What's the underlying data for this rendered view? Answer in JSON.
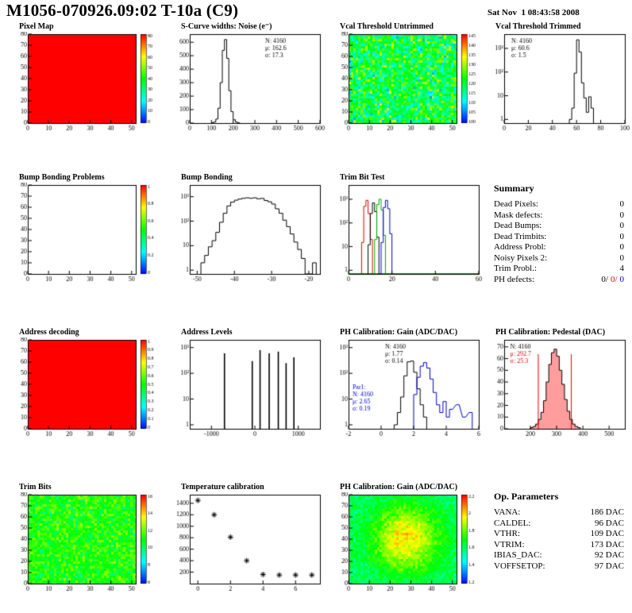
{
  "header": {
    "title": "M1056-070926.09:02 T-10a (C9)",
    "date": "Sat Nov  1 08:43:58 2008"
  },
  "chart_data": [
    {
      "title": "Pixel Map",
      "type": "heatmap",
      "variant": "solid",
      "seed": 3,
      "xlim": [
        0,
        52
      ],
      "ylim": [
        0,
        80
      ],
      "xticks": [
        0,
        10,
        20,
        30,
        40,
        50
      ],
      "yticks": [
        0,
        10,
        20,
        30,
        40,
        50,
        60,
        70,
        80
      ],
      "colorbar": {
        "zticks": [
          "0",
          "10",
          "20",
          "30",
          "40",
          "50",
          "60",
          "70",
          "80"
        ]
      }
    },
    {
      "title": "S-Curve widths: Noise (e⁻)",
      "type": "hist",
      "xlim": [
        0,
        600
      ],
      "xticks": [
        0,
        100,
        200,
        300,
        400,
        500,
        600
      ],
      "ylim": [
        0,
        660
      ],
      "yticks": [
        0,
        100,
        200,
        300,
        400,
        500,
        600
      ],
      "bin_width": 10,
      "bins": [
        [
          100,
          2
        ],
        [
          110,
          8
        ],
        [
          120,
          30
        ],
        [
          130,
          110
        ],
        [
          140,
          300
        ],
        [
          150,
          540
        ],
        [
          160,
          620
        ],
        [
          170,
          480
        ],
        [
          180,
          240
        ],
        [
          190,
          85
        ],
        [
          200,
          25
        ],
        [
          210,
          8
        ],
        [
          220,
          2
        ]
      ],
      "stats": [
        {
          "x": 0.58,
          "y": 0.04,
          "lines": [
            {
              "t": "N: 4160",
              "c": "#000000"
            },
            {
              "t": "μ: 162.6",
              "c": "#000000"
            },
            {
              "t": "σ: 17.3",
              "c": "#000000"
            }
          ]
        }
      ]
    },
    {
      "title": "Vcal Threshold Untrimmed",
      "type": "heatmap",
      "variant": "noise",
      "seed": 17,
      "base": 0.45,
      "amp": 0.25,
      "xlim": [
        0,
        52
      ],
      "ylim": [
        0,
        80
      ],
      "xticks": [
        0,
        10,
        20,
        30,
        40,
        50
      ],
      "yticks": [
        0,
        10,
        20,
        30,
        40,
        50,
        60,
        70,
        80
      ],
      "colorbar": {
        "zticks": [
          "100",
          "105",
          "110",
          "115",
          "120",
          "125",
          "130",
          "135",
          "140",
          "145"
        ]
      }
    },
    {
      "title": "Vcal Threshold Trimmed",
      "type": "histlog",
      "xlim": [
        0,
        100
      ],
      "xticks": [
        0,
        20,
        40,
        60,
        80,
        100
      ],
      "ylog": {
        "min": 0.7,
        "max": 4000,
        "ticks": [
          1,
          10,
          100,
          1000
        ]
      },
      "bin_width": 2,
      "bins": [
        [
          54,
          1
        ],
        [
          56,
          3
        ],
        [
          58,
          90
        ],
        [
          60,
          2300
        ],
        [
          62,
          700
        ],
        [
          64,
          35
        ],
        [
          66,
          8
        ],
        [
          68,
          2
        ],
        [
          70,
          9
        ],
        [
          72,
          3
        ]
      ],
      "stats": [
        {
          "x": 0.06,
          "y": 0.04,
          "lines": [
            {
              "t": "N: 4160",
              "c": "#000000"
            },
            {
              "t": "μ: 60.6",
              "c": "#000000"
            },
            {
              "t": "σ: 1.5",
              "c": "#000000"
            }
          ]
        }
      ]
    },
    {
      "title": "Bump Bonding Problems",
      "type": "heatmap",
      "variant": "empty",
      "xlim": [
        0,
        52
      ],
      "ylim": [
        0,
        80
      ],
      "xticks": [
        0,
        10,
        20,
        30,
        40,
        50
      ],
      "yticks": [
        0,
        10,
        20,
        30,
        40,
        50,
        60,
        70,
        80
      ],
      "colorbar": {
        "zticks": [
          "0",
          "0.2",
          "0.4",
          "0.6",
          "0.8",
          "1"
        ]
      }
    },
    {
      "title": "Bump Bonding",
      "type": "histlog",
      "xlim": [
        -52,
        -17
      ],
      "xticks": [
        -50,
        -40,
        -30,
        -20
      ],
      "ylog": {
        "min": 0.7,
        "max": 3000,
        "ticks": [
          1,
          10,
          100,
          1000
        ]
      },
      "bin_width": 1,
      "bins": [
        [
          -49,
          2
        ],
        [
          -48,
          4
        ],
        [
          -47,
          9
        ],
        [
          -46,
          16
        ],
        [
          -45,
          35
        ],
        [
          -44,
          90
        ],
        [
          -43,
          210
        ],
        [
          -42,
          420
        ],
        [
          -41,
          600
        ],
        [
          -40,
          720
        ],
        [
          -39,
          800
        ],
        [
          -38,
          860
        ],
        [
          -37,
          900
        ],
        [
          -36,
          860
        ],
        [
          -35,
          900
        ],
        [
          -34,
          820
        ],
        [
          -33,
          850
        ],
        [
          -32,
          700
        ],
        [
          -31,
          620
        ],
        [
          -30,
          500
        ],
        [
          -29,
          320
        ],
        [
          -28,
          210
        ],
        [
          -27,
          110
        ],
        [
          -26,
          60
        ],
        [
          -25,
          30
        ],
        [
          -24,
          14
        ],
        [
          -23,
          7
        ],
        [
          -22,
          3
        ],
        [
          -21,
          0
        ],
        [
          -20,
          0
        ],
        [
          -19,
          2
        ]
      ]
    },
    {
      "title": "Trim Bit Test",
      "type": "histlog-multi",
      "xlim": [
        0,
        60
      ],
      "xticks": [
        0,
        20,
        40,
        60
      ],
      "ylog": {
        "min": 0.7,
        "max": 4000,
        "ticks": [
          1,
          10,
          100,
          1000
        ]
      },
      "bin_width": 1,
      "baseline_color": "#00aa00",
      "series": [
        {
          "color": "#dd0000",
          "bins": [
            [
              6,
              15
            ],
            [
              7,
              500
            ],
            [
              8,
              900
            ],
            [
              9,
              250
            ],
            [
              10,
              20
            ]
          ]
        },
        {
          "color": "#000000",
          "bins": [
            [
              9,
              12
            ],
            [
              10,
              250
            ],
            [
              11,
              700
            ],
            [
              12,
              300
            ],
            [
              13,
              25
            ]
          ]
        },
        {
          "color": "#00aa00",
          "bins": [
            [
              12,
              20
            ],
            [
              13,
              600
            ],
            [
              14,
              1000
            ],
            [
              15,
              350
            ],
            [
              16,
              30
            ]
          ]
        },
        {
          "color": "#0000dd",
          "bins": [
            [
              15,
              15
            ],
            [
              16,
              450
            ],
            [
              17,
              900
            ],
            [
              18,
              400
            ],
            [
              19,
              35
            ]
          ]
        }
      ]
    },
    {
      "title": "Address decoding",
      "type": "heatmap",
      "variant": "solid",
      "seed": 5,
      "xlim": [
        0,
        52
      ],
      "ylim": [
        0,
        80
      ],
      "xticks": [
        0,
        10,
        20,
        30,
        40,
        50
      ],
      "yticks": [
        0,
        10,
        20,
        30,
        40,
        50,
        60,
        70,
        80
      ],
      "colorbar": {
        "zticks": [
          "0",
          "0.1",
          "0.2",
          "0.3",
          "0.4",
          "0.5",
          "0.6",
          "0.7",
          "0.8",
          "0.9",
          "1"
        ]
      }
    },
    {
      "title": "Address Levels",
      "type": "spikes",
      "xlim": [
        -1500,
        1500
      ],
      "xticks": [
        -1000,
        0,
        1000
      ],
      "ylog": {
        "min": 0.7,
        "max": 2000,
        "ticks": [
          1,
          10,
          100,
          1000
        ]
      },
      "spikes": [
        [
          -700,
          600
        ],
        [
          -60,
          300
        ],
        [
          120,
          800
        ],
        [
          330,
          600
        ],
        [
          540,
          700
        ],
        [
          720,
          250
        ],
        [
          900,
          420
        ]
      ]
    },
    {
      "title": "PH Calibration: Gain (ADC/DAC)",
      "type": "histlog-multi",
      "xlim": [
        -2,
        6
      ],
      "xticks": [
        -2,
        0,
        2,
        4,
        6
      ],
      "ylog": {
        "min": 0.7,
        "max": 2000,
        "ticks": [
          1,
          10,
          100,
          1000
        ]
      },
      "bin_width": 0.2,
      "series": [
        {
          "color": "#000000",
          "bins": [
            [
              0.8,
              1
            ],
            [
              1.0,
              3
            ],
            [
              1.2,
              12
            ],
            [
              1.4,
              80
            ],
            [
              1.6,
              280
            ],
            [
              1.8,
              300
            ],
            [
              2.0,
              110
            ],
            [
              2.2,
              25
            ],
            [
              2.4,
              6
            ],
            [
              2.6,
              2
            ]
          ]
        },
        {
          "color": "#0000cc",
          "bins": [
            [
              2.0,
              15
            ],
            [
              2.2,
              70
            ],
            [
              2.4,
              190
            ],
            [
              2.6,
              260
            ],
            [
              2.8,
              160
            ],
            [
              3.0,
              60
            ],
            [
              3.2,
              18
            ],
            [
              3.4,
              6
            ],
            [
              3.6,
              3
            ],
            [
              3.8,
              8
            ],
            [
              4.0,
              2
            ],
            [
              4.2,
              4
            ],
            [
              4.6,
              6
            ],
            [
              5.0,
              2
            ],
            [
              5.4,
              3
            ]
          ]
        }
      ],
      "stats": [
        {
          "x": 0.28,
          "y": 0.04,
          "lines": [
            {
              "t": "N: 4160",
              "c": "#000000"
            },
            {
              "t": "μ: 1.77",
              "c": "#000000"
            },
            {
              "t": "σ: 0.14",
              "c": "#000000"
            }
          ]
        },
        {
          "x": 0.03,
          "y": 0.5,
          "lines": [
            {
              "t": "Par1:",
              "c": "#0000cc"
            },
            {
              "t": "N: 4160",
              "c": "#0000cc"
            },
            {
              "t": "μ: 2.65",
              "c": "#0000cc"
            },
            {
              "t": "σ: 0.19",
              "c": "#0000cc"
            }
          ]
        }
      ]
    },
    {
      "title": "PH Calibration: Pedestal (DAC)",
      "type": "hist",
      "fill": "rgba(255,60,60,0.5)",
      "xlim": [
        100,
        560
      ],
      "xticks": [
        200,
        300,
        400,
        500
      ],
      "ylim": [
        0,
        76
      ],
      "yticks": [
        0,
        10,
        20,
        30,
        40,
        50,
        60,
        70
      ],
      "bin_width": 10,
      "bins": [
        [
          200,
          1
        ],
        [
          210,
          2
        ],
        [
          220,
          4
        ],
        [
          230,
          8
        ],
        [
          240,
          14
        ],
        [
          250,
          24
        ],
        [
          260,
          40
        ],
        [
          270,
          55
        ],
        [
          280,
          65
        ],
        [
          290,
          68
        ],
        [
          300,
          62
        ],
        [
          310,
          50
        ],
        [
          320,
          38
        ],
        [
          330,
          25
        ],
        [
          340,
          15
        ],
        [
          350,
          8
        ],
        [
          360,
          4
        ],
        [
          370,
          2
        ],
        [
          380,
          1
        ]
      ],
      "vlines": [
        {
          "x": 230,
          "color": "#e00000"
        },
        {
          "x": 356,
          "color": "#e00000"
        }
      ],
      "stats": [
        {
          "x": 0.05,
          "y": 0.04,
          "lines": [
            {
              "t": "N: 4160",
              "c": "#000000"
            },
            {
              "t": "μ: 292.7",
              "c": "#e00000"
            },
            {
              "t": "σ: 25.3",
              "c": "#e00000"
            }
          ]
        }
      ]
    },
    {
      "title": "Trim Bits",
      "type": "heatmap",
      "variant": "noise",
      "seed": 29,
      "base": 0.52,
      "amp": 0.14,
      "xlim": [
        0,
        52
      ],
      "ylim": [
        0,
        80
      ],
      "xticks": [
        0,
        10,
        20,
        30,
        40,
        50
      ],
      "yticks": [
        0,
        10,
        20,
        30,
        40,
        50,
        60,
        70,
        80
      ],
      "colorbar": {
        "zticks": [
          "6",
          "8",
          "10",
          "12",
          "14",
          "16"
        ]
      }
    },
    {
      "title": "Temperature calibration",
      "type": "scatter",
      "marker": "star",
      "xlim": [
        -0.5,
        7.5
      ],
      "xticks": [
        0,
        2,
        4,
        6
      ],
      "ylim": [
        0,
        1550
      ],
      "yticks": [
        200,
        400,
        600,
        800,
        1000,
        1200,
        1400
      ],
      "points": [
        [
          0,
          1450
        ],
        [
          1,
          1200
        ],
        [
          2,
          810
        ],
        [
          3,
          400
        ],
        [
          4,
          160
        ],
        [
          5,
          150
        ],
        [
          6,
          150
        ],
        [
          7,
          150
        ]
      ]
    },
    {
      "title": "PH Calibration: Gain (ADC/DAC)",
      "type": "heatmap",
      "variant": "blob",
      "seed": 41,
      "base": 0.4,
      "bump": 0.38,
      "amp": 0.1,
      "xlim": [
        0,
        52
      ],
      "ylim": [
        0,
        80
      ],
      "xticks": [
        0,
        10,
        20,
        30,
        40,
        50
      ],
      "yticks": [
        0,
        10,
        20,
        30,
        40,
        50,
        60,
        70,
        80
      ],
      "colorbar": {
        "zticks": [
          "1.2",
          "1.4",
          "1.6",
          "1.8",
          "2",
          "2.2"
        ]
      }
    }
  ],
  "summary": {
    "title": "Summary",
    "rows": [
      {
        "label": "Dead Pixels:",
        "value": "0"
      },
      {
        "label": "Mask defects:",
        "value": "0"
      },
      {
        "label": "Dead Bumps:",
        "value": "0"
      },
      {
        "label": "Dead Trimbits:",
        "value": "0"
      },
      {
        "label": "Address Probl:",
        "value": "0"
      },
      {
        "label": "Noisy Pixels 2:",
        "value": "0"
      },
      {
        "label": "Trim Probl.:",
        "value": "4"
      }
    ],
    "ph_defects": {
      "label": "PH defects:",
      "black": "0/",
      "red": "0/",
      "blue": "0"
    }
  },
  "op_parameters": {
    "title": "Op. Parameters",
    "rows": [
      {
        "label": "VANA:",
        "value": "186 DAC"
      },
      {
        "label": "CALDEL:",
        "value": "96 DAC"
      },
      {
        "label": "VTHR:",
        "value": "109 DAC"
      },
      {
        "label": "VTRIM:",
        "value": "173 DAC"
      },
      {
        "label": "IBIAS_DAC:",
        "value": "92 DAC"
      },
      {
        "label": "VOFFSETOP:",
        "value": "97 DAC"
      }
    ]
  }
}
